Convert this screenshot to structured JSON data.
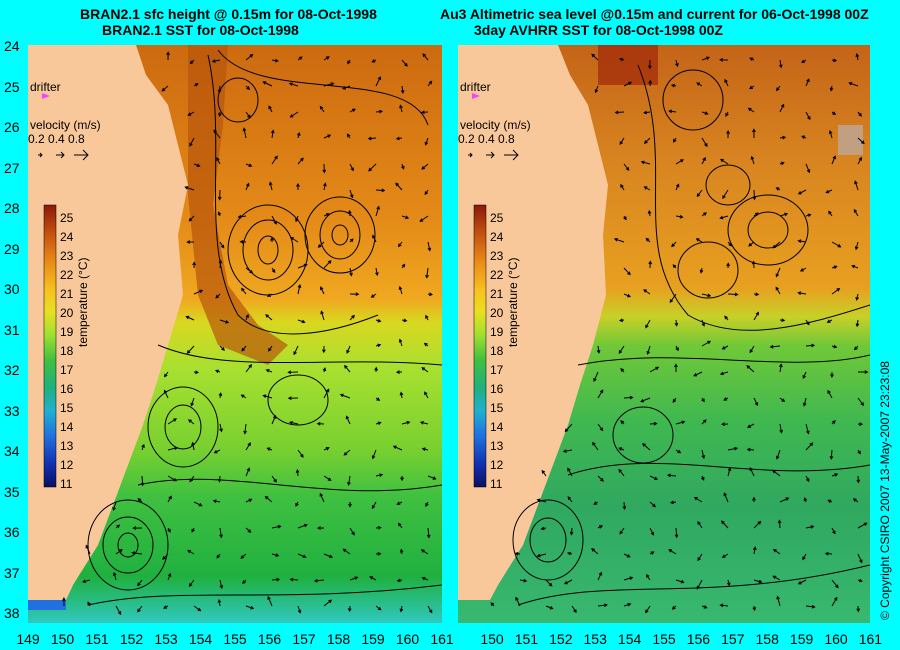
{
  "left_panel": {
    "title_line1": "BRAN2.1 sfc height @ 0.15m for 08-Oct-1998",
    "title_line2": "BRAN2.1 SST for 08-Oct-1998"
  },
  "right_panel": {
    "title_line1": "Au3 Altimetric sea level  @0.15m and current for 06-Oct-1998 00Z",
    "title_line2": "3day AVHRR SST for 08-Oct-1998 00Z"
  },
  "legend": {
    "drifter_label": "drifter",
    "velocity_label": "velocity (m/s)",
    "velocity_scale": "0.2 0.4 0.8",
    "temperature_label": "temperature (°C)",
    "temperature_ticks": [
      "25",
      "24",
      "23",
      "22",
      "21",
      "20",
      "19",
      "18",
      "17",
      "16",
      "15",
      "14",
      "13",
      "12",
      "11"
    ]
  },
  "axes": {
    "lat_ticks": [
      "24",
      "25",
      "26",
      "27",
      "28",
      "29",
      "30",
      "31",
      "32",
      "33",
      "34",
      "35",
      "36",
      "37",
      "38"
    ],
    "lon_ticks": [
      "149",
      "150",
      "151",
      "152",
      "153",
      "154",
      "155",
      "156",
      "157",
      "158",
      "159",
      "160",
      "161"
    ],
    "lon_ticks_right": [
      "150",
      "151",
      "152",
      "153",
      "154",
      "155",
      "156",
      "157",
      "158",
      "159",
      "160",
      "161"
    ]
  },
  "copyright": "© Copyright CSIRO 2007   13-May-2007 23:23:08",
  "colors": {
    "background": "#00ffff",
    "land": "#f9c89a",
    "drifter": "#ff40ff"
  }
}
